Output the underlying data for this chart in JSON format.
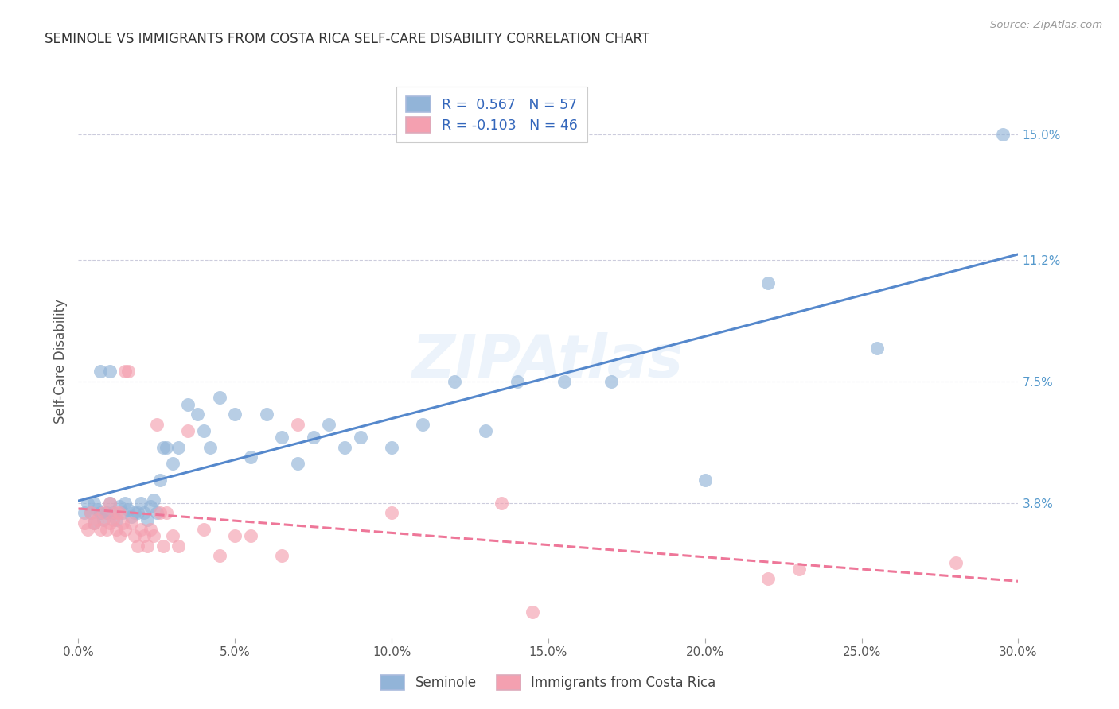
{
  "title": "SEMINOLE VS IMMIGRANTS FROM COSTA RICA SELF-CARE DISABILITY CORRELATION CHART",
  "source": "Source: ZipAtlas.com",
  "ylabel": "Self-Care Disability",
  "ylabel_ticks_right": [
    "15.0%",
    "11.2%",
    "7.5%",
    "3.8%"
  ],
  "ylabel_vals_right": [
    15.0,
    11.2,
    7.5,
    3.8
  ],
  "xlim": [
    0.0,
    30.0
  ],
  "ylim": [
    -0.3,
    16.5
  ],
  "blue_color": "#92B4D8",
  "pink_color": "#F4A0B0",
  "trend_blue": "#5588CC",
  "trend_pink": "#EE7799",
  "blue_R": 0.567,
  "blue_N": 57,
  "pink_R": -0.103,
  "pink_N": 46,
  "blue_x": [
    0.2,
    0.3,
    0.4,
    0.5,
    0.5,
    0.6,
    0.7,
    0.7,
    0.8,
    0.9,
    1.0,
    1.0,
    1.1,
    1.2,
    1.3,
    1.4,
    1.5,
    1.6,
    1.7,
    1.8,
    1.9,
    2.0,
    2.1,
    2.2,
    2.3,
    2.4,
    2.5,
    2.6,
    2.7,
    2.8,
    3.0,
    3.2,
    3.5,
    3.8,
    4.0,
    4.2,
    4.5,
    5.0,
    5.5,
    6.0,
    6.5,
    7.0,
    7.5,
    8.0,
    8.5,
    9.0,
    10.0,
    11.0,
    12.0,
    13.0,
    14.0,
    15.5,
    17.0,
    20.0,
    22.0,
    25.5,
    29.5
  ],
  "blue_y": [
    3.5,
    3.8,
    3.5,
    3.2,
    3.8,
    3.6,
    3.5,
    7.8,
    3.3,
    3.5,
    3.8,
    7.8,
    3.5,
    3.3,
    3.7,
    3.5,
    3.8,
    3.6,
    3.4,
    3.5,
    3.5,
    3.8,
    3.5,
    3.3,
    3.7,
    3.9,
    3.5,
    4.5,
    5.5,
    5.5,
    5.0,
    5.5,
    6.8,
    6.5,
    6.0,
    5.5,
    7.0,
    6.5,
    5.2,
    6.5,
    5.8,
    5.0,
    5.8,
    6.2,
    5.5,
    5.8,
    5.5,
    6.2,
    7.5,
    6.0,
    7.5,
    7.5,
    7.5,
    4.5,
    10.5,
    8.5,
    15.0
  ],
  "pink_x": [
    0.2,
    0.3,
    0.4,
    0.5,
    0.6,
    0.7,
    0.8,
    0.9,
    1.0,
    1.0,
    1.1,
    1.2,
    1.2,
    1.3,
    1.3,
    1.4,
    1.5,
    1.5,
    1.6,
    1.7,
    1.8,
    1.9,
    2.0,
    2.1,
    2.2,
    2.3,
    2.4,
    2.5,
    2.6,
    2.7,
    2.8,
    3.0,
    3.2,
    3.5,
    4.0,
    4.5,
    5.0,
    5.5,
    6.5,
    7.0,
    10.0,
    13.5,
    14.5,
    22.0,
    23.0,
    28.0
  ],
  "pink_y": [
    3.2,
    3.0,
    3.5,
    3.2,
    3.3,
    3.0,
    3.5,
    3.0,
    3.2,
    3.8,
    3.3,
    3.0,
    3.5,
    3.5,
    2.8,
    3.2,
    3.0,
    7.8,
    7.8,
    3.2,
    2.8,
    2.5,
    3.0,
    2.8,
    2.5,
    3.0,
    2.8,
    6.2,
    3.5,
    2.5,
    3.5,
    2.8,
    2.5,
    6.0,
    3.0,
    2.2,
    2.8,
    2.8,
    2.2,
    6.2,
    3.5,
    3.8,
    0.5,
    1.5,
    1.8,
    2.0
  ]
}
